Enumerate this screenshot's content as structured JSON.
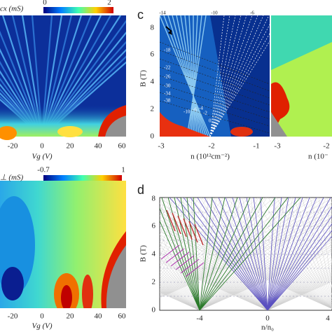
{
  "panel_a": {
    "colorbar_label": "cx (mS)",
    "colorbar_ticks": [
      "0",
      "2"
    ],
    "x_ticks": [
      "-20",
      "0",
      "20",
      "40",
      "60"
    ],
    "x_label": "Vg (V)"
  },
  "panel_c": {
    "letter": "c",
    "y_label": "B (T)",
    "y_ticks": [
      "0",
      "2",
      "4",
      "6",
      "8"
    ],
    "x_ticks": [
      "-3",
      "-2",
      "-1"
    ],
    "x_label": "n (10¹²cm⁻²)",
    "x_ticks_right": [
      "-3",
      "-2"
    ],
    "x_label_right": "n (10⁻",
    "top_labels": [
      "-14",
      "-10",
      "-6"
    ],
    "side_labels": [
      "-18",
      "-22",
      "-26",
      "-30",
      "-34",
      "-38"
    ],
    "fan_labels": [
      "-10",
      "-6",
      "-4",
      "-2",
      "0",
      "2"
    ]
  },
  "panel_b": {
    "colorbar_label": "⊥ (mS)",
    "colorbar_ticks": [
      "-0.7",
      "1"
    ],
    "x_ticks": [
      "-20",
      "0",
      "20",
      "40",
      "60"
    ],
    "x_label": "Vg (V)"
  },
  "panel_d": {
    "letter": "d",
    "y_label": "B (T)",
    "y_ticks": [
      "0",
      "2",
      "4",
      "6",
      "8"
    ],
    "x_ticks": [
      "-4",
      "0",
      "4"
    ],
    "x_label": "n/n₀"
  }
}
